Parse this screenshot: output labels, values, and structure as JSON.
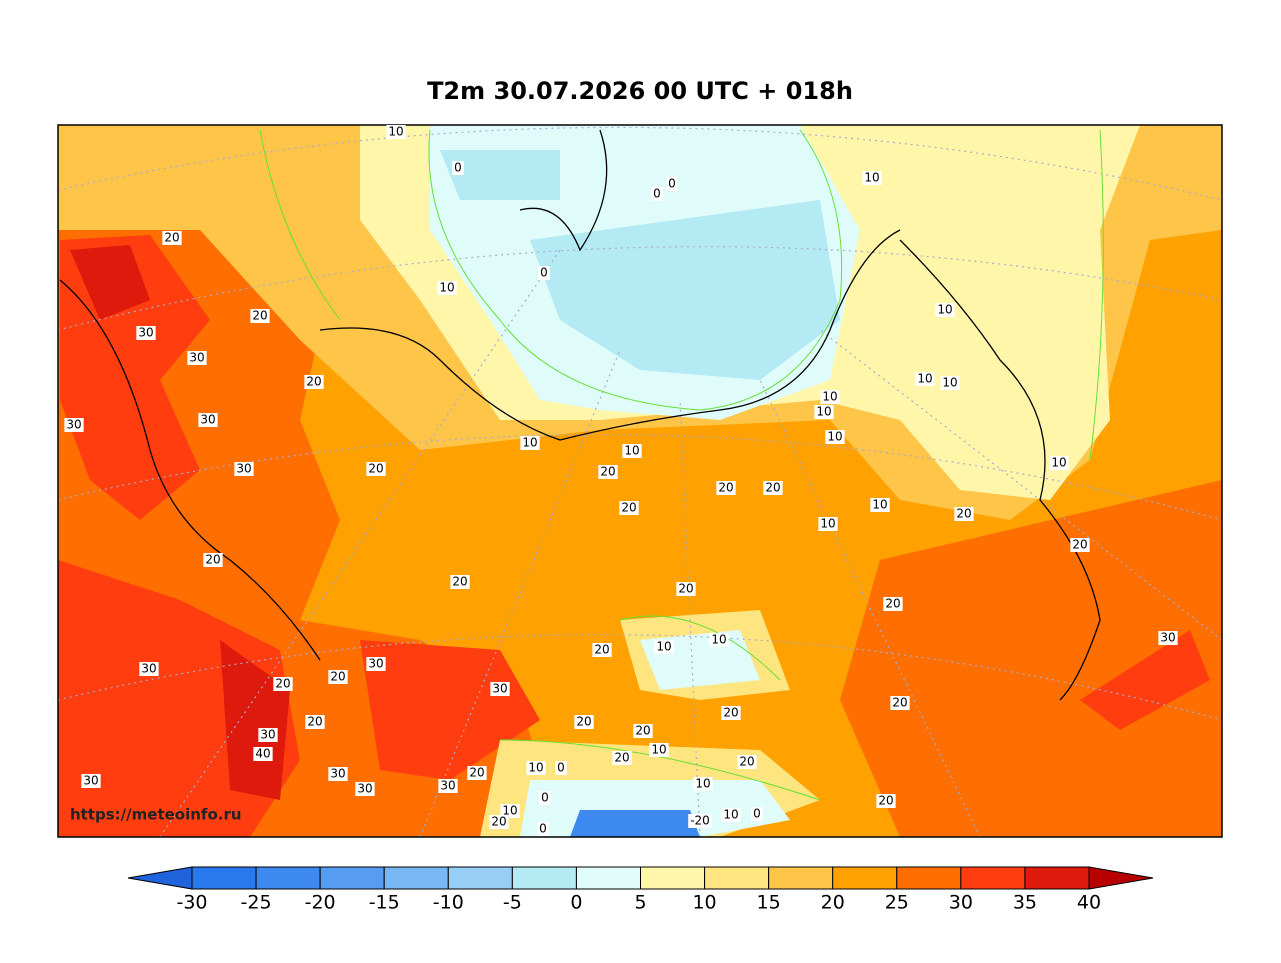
{
  "title": "T2m 30.07.2026 00 UTC + 018h",
  "watermark": "https://meteoinfo.ru",
  "contour_labels": [
    "10",
    "0",
    "0",
    "0",
    "10",
    "20",
    "0",
    "10",
    "20",
    "30",
    "10",
    "30",
    "20",
    "10",
    "10",
    "10",
    "10",
    "30",
    "30",
    "10",
    "10",
    "10",
    "20",
    "30",
    "20",
    "20",
    "20",
    "10",
    "20",
    "10",
    "20",
    "10",
    "20",
    "20",
    "20",
    "20",
    "20",
    "10",
    "10",
    "20",
    "30",
    "30",
    "30",
    "20",
    "20",
    "30",
    "20",
    "20",
    "20",
    "20",
    "20",
    "30",
    "10",
    "40",
    "20",
    "20",
    "10",
    "0",
    "30",
    "20",
    "30",
    "10",
    "30",
    "30",
    "0",
    "20",
    "10",
    "10",
    "0",
    "20",
    "-20",
    "0"
  ],
  "colorbar": {
    "ticks": [
      "-30",
      "-25",
      "-20",
      "-15",
      "-10",
      "-5",
      "0",
      "5",
      "10",
      "15",
      "20",
      "25",
      "30",
      "35",
      "40"
    ],
    "under_color": "#1f63dd",
    "over_color": "#b80000",
    "colors": [
      "#2a78ee",
      "#3d89f0",
      "#559cf2",
      "#78b6f4",
      "#98cef5",
      "#b3eaf4",
      "#dffcfb",
      "#fff6aa",
      "#ffe57f",
      "#ffc548",
      "#ffa100",
      "#ff6e00",
      "#ff3d0e",
      "#dd1a0c"
    ]
  }
}
